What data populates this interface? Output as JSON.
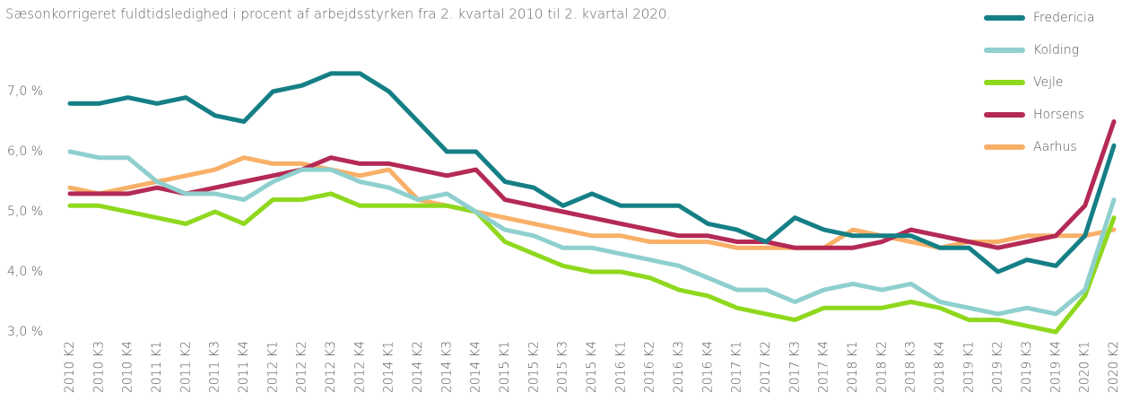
{
  "chart_data": {
    "type": "line",
    "subtitle": "Sæsonkorrigeret fuldtidsledighed i procent af arbejdsstyrken fra 2. kvartal 2010 til 2. kvartal 2020.",
    "categories": [
      "2010 K2",
      "2010 K3",
      "2010 K4",
      "2011 K1",
      "2011 K2",
      "2011 K3",
      "2011 K4",
      "2012 K1",
      "2012 K2",
      "2012 K3",
      "2012 K4",
      "2014 K1",
      "2014 K2",
      "2014 K3",
      "2014 K4",
      "2015 K1",
      "2015 K2",
      "2015 K3",
      "2015 K4",
      "2016 K1",
      "2016 K2",
      "2016 K3",
      "2016 K4",
      "2017 K1",
      "2017 K2",
      "2017 K3",
      "2017 K4",
      "2018 K1",
      "2018 K2",
      "2018 K3",
      "2018 K4",
      "2019 K1",
      "2019 K2",
      "2019 K3",
      "2019 K4",
      "2020 K1",
      "2020 K2"
    ],
    "series": [
      {
        "name": "Fredericia",
        "color": "#157f86",
        "values": [
          6.8,
          6.8,
          6.9,
          6.8,
          6.9,
          6.6,
          6.5,
          7.0,
          7.1,
          7.3,
          7.3,
          7.0,
          6.5,
          6.0,
          6.0,
          5.5,
          5.4,
          5.1,
          5.3,
          5.1,
          5.1,
          5.1,
          4.8,
          4.7,
          4.5,
          4.9,
          4.7,
          4.6,
          4.6,
          4.6,
          4.4,
          4.4,
          4.0,
          4.2,
          4.1,
          4.6,
          6.1
        ]
      },
      {
        "name": "Kolding",
        "color": "#8fd0ce",
        "values": [
          6.0,
          5.9,
          5.9,
          5.5,
          5.3,
          5.3,
          5.2,
          5.5,
          5.7,
          5.7,
          5.5,
          5.4,
          5.2,
          5.3,
          5.0,
          4.7,
          4.6,
          4.4,
          4.4,
          4.3,
          4.2,
          4.1,
          3.9,
          3.7,
          3.7,
          3.5,
          3.7,
          3.8,
          3.7,
          3.8,
          3.5,
          3.4,
          3.3,
          3.4,
          3.3,
          3.7,
          5.2
        ]
      },
      {
        "name": "Vejle",
        "color": "#8fd81e",
        "values": [
          5.1,
          5.1,
          5.0,
          4.9,
          4.8,
          5.0,
          4.8,
          5.2,
          5.2,
          5.3,
          5.1,
          5.1,
          5.1,
          5.1,
          5.0,
          4.5,
          4.3,
          4.1,
          4.0,
          4.0,
          3.9,
          3.7,
          3.6,
          3.4,
          3.3,
          3.2,
          3.4,
          3.4,
          3.4,
          3.5,
          3.4,
          3.2,
          3.2,
          3.1,
          3.0,
          3.6,
          4.9
        ]
      },
      {
        "name": "Horsens",
        "color": "#b42a55",
        "values": [
          5.3,
          5.3,
          5.3,
          5.4,
          5.3,
          5.4,
          5.5,
          5.6,
          5.7,
          5.9,
          5.8,
          5.8,
          5.7,
          5.6,
          5.7,
          5.2,
          5.1,
          5.0,
          4.9,
          4.8,
          4.7,
          4.6,
          4.6,
          4.5,
          4.5,
          4.4,
          4.4,
          4.4,
          4.5,
          4.7,
          4.6,
          4.5,
          4.4,
          4.5,
          4.6,
          5.1,
          6.5
        ]
      },
      {
        "name": "Aarhus",
        "color": "#f8b068",
        "values": [
          5.4,
          5.3,
          5.4,
          5.5,
          5.6,
          5.7,
          5.9,
          5.8,
          5.8,
          5.7,
          5.6,
          5.7,
          5.2,
          5.1,
          5.0,
          4.9,
          4.8,
          4.7,
          4.6,
          4.6,
          4.5,
          4.5,
          4.5,
          4.4,
          4.4,
          4.4,
          4.4,
          4.7,
          4.6,
          4.5,
          4.4,
          4.5,
          4.5,
          4.6,
          4.6,
          4.6,
          4.7
        ]
      }
    ],
    "ylim": [
      2.9,
      7.5
    ],
    "yticks": [
      {
        "value": 3.0,
        "label": "3,0 %"
      },
      {
        "value": 4.0,
        "label": "4,0 %"
      },
      {
        "value": 5.0,
        "label": "5,0 %"
      },
      {
        "value": 6.0,
        "label": "6,0 %"
      },
      {
        "value": 7.0,
        "label": "7,0 %"
      }
    ],
    "grid": false,
    "legend": "top-right"
  }
}
